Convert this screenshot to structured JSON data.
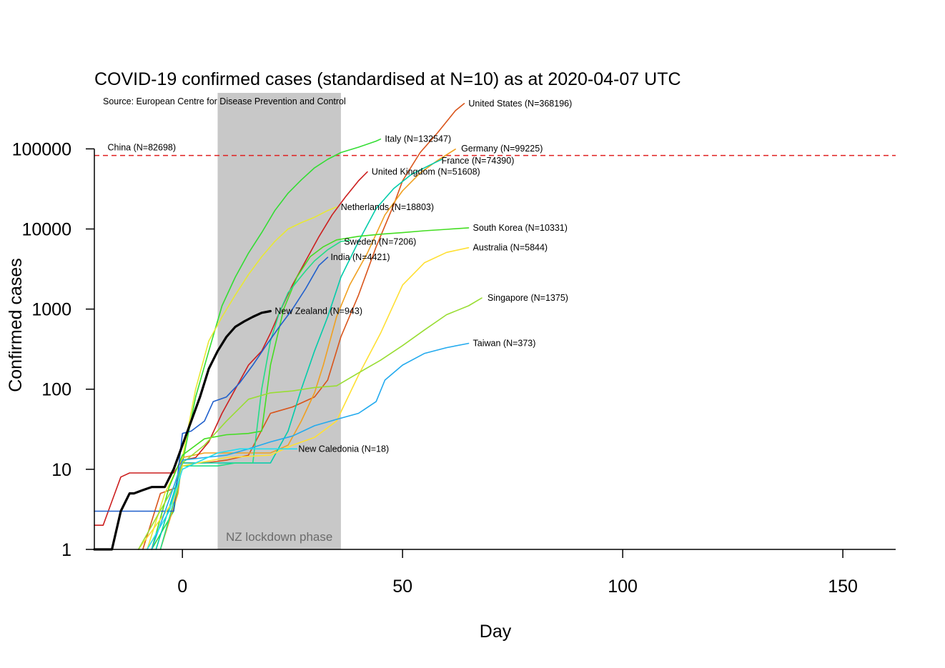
{
  "chart_data": {
    "type": "line",
    "title": "COVID-19 confirmed cases (standardised at N=10) as at 2020-04-07 UTC",
    "subtitle": "Source: European Centre for Disease Prevention and Control",
    "xlabel": "Day",
    "ylabel": "Confirmed cases",
    "x_scale": "linear",
    "y_scale": "log10",
    "xlim": [
      -20,
      162
    ],
    "ylim": [
      1,
      500000
    ],
    "x_ticks": [
      0,
      50,
      100,
      150
    ],
    "y_ticks": [
      1,
      10,
      100,
      1000,
      10000,
      100000
    ],
    "x_tick_labels": [
      "0",
      "50",
      "100",
      "150"
    ],
    "y_tick_labels": [
      "1",
      "10",
      "100",
      "1000",
      "10000",
      "100000"
    ],
    "grid": false,
    "shaded_band": {
      "x_start": 8,
      "x_end": 36,
      "label": "NZ lockdown phase",
      "color": "#c8c8c8"
    },
    "reference_line": {
      "y": 82698,
      "label": "China (N=82698)",
      "color": "#e02020",
      "style": "dashed"
    },
    "series": [
      {
        "name": "United States",
        "label": "United States (N=368196)",
        "color": "#d9541a",
        "width": 1.6,
        "x": [
          -9,
          -5,
          -1,
          0,
          5,
          10,
          15,
          20,
          25,
          30,
          33,
          36,
          40,
          44,
          48,
          50,
          54,
          58,
          62,
          64
        ],
        "y": [
          1,
          5,
          6,
          12,
          12,
          13,
          15,
          50,
          60,
          80,
          130,
          450,
          1500,
          6000,
          20000,
          40000,
          90000,
          160000,
          300000,
          368196
        ]
      },
      {
        "name": "Italy",
        "label": "Italy (N=132547)",
        "color": "#33dd33",
        "width": 1.6,
        "x": [
          -7,
          -2,
          0,
          3,
          6,
          9,
          12,
          15,
          18,
          21,
          24,
          27,
          30,
          33,
          36,
          40,
          44,
          45
        ],
        "y": [
          1,
          3,
          12,
          80,
          300,
          1100,
          2500,
          5000,
          9000,
          17000,
          28000,
          41000,
          58000,
          74000,
          90000,
          105000,
          125000,
          132547
        ]
      },
      {
        "name": "Germany",
        "label": "Germany (N=99225)",
        "color": "#f0a020",
        "width": 1.6,
        "x": [
          -5,
          -1,
          0,
          5,
          10,
          15,
          20,
          24,
          27,
          30,
          32,
          35,
          38,
          42,
          46,
          50,
          54,
          58,
          62
        ],
        "y": [
          1,
          5,
          14,
          16,
          16,
          16,
          16,
          20,
          40,
          90,
          200,
          800,
          2000,
          5000,
          15000,
          30000,
          50000,
          72000,
          99225
        ]
      },
      {
        "name": "France",
        "label": "France (N=74390)",
        "color": "#00ccaa",
        "width": 1.6,
        "x": [
          -6,
          -2,
          0,
          4,
          8,
          12,
          16,
          20,
          24,
          27,
          30,
          33,
          36,
          40,
          44,
          48,
          52,
          56,
          59
        ],
        "y": [
          1,
          5,
          12,
          12,
          12,
          12,
          12,
          12,
          30,
          100,
          300,
          800,
          2500,
          7000,
          18000,
          32000,
          48000,
          62000,
          74390
        ]
      },
      {
        "name": "United Kingdom",
        "label": "United Kingdom (N=51608)",
        "color": "#cc1f1f",
        "width": 1.6,
        "x": [
          -20,
          -18,
          -16,
          -14,
          -12,
          -8,
          -2,
          0,
          3,
          6,
          9,
          12,
          15,
          18,
          20,
          22,
          25,
          28,
          31,
          34,
          37,
          40,
          42
        ],
        "y": [
          2,
          2,
          4,
          8,
          9,
          9,
          9,
          13,
          14,
          22,
          50,
          100,
          200,
          300,
          500,
          900,
          2000,
          4000,
          8000,
          15000,
          25000,
          40000,
          51608
        ]
      },
      {
        "name": "Netherlands",
        "label": "Netherlands (N=18803)",
        "color": "#e8e833",
        "width": 1.6,
        "x": [
          -8,
          -4,
          0,
          3,
          6,
          9,
          12,
          15,
          18,
          21,
          24,
          27,
          30,
          33,
          35
        ],
        "y": [
          1,
          5,
          14,
          100,
          400,
          800,
          1500,
          2700,
          4500,
          7000,
          10000,
          12000,
          14000,
          17000,
          18803
        ]
      },
      {
        "name": "South Korea",
        "label": "South Korea (N=10331)",
        "color": "#44dd22",
        "width": 1.6,
        "x": [
          -7,
          -3,
          0,
          5,
          10,
          15,
          18,
          20,
          23,
          26,
          29,
          32,
          35,
          40,
          45,
          50,
          55,
          60,
          65
        ],
        "y": [
          1,
          6,
          15,
          24,
          27,
          28,
          30,
          200,
          1000,
          2500,
          4500,
          6000,
          7300,
          8100,
          8600,
          9000,
          9500,
          9900,
          10331
        ]
      },
      {
        "name": "Sweden",
        "label": "Sweden (N=7206)",
        "color": "#22dd88",
        "width": 1.6,
        "x": [
          -5,
          -1,
          0,
          4,
          8,
          12,
          16,
          18,
          20,
          22,
          24,
          26,
          28,
          30,
          33,
          36,
          38
        ],
        "y": [
          1,
          6,
          11,
          11,
          11,
          12,
          12,
          100,
          400,
          900,
          1600,
          2200,
          3000,
          4000,
          5500,
          7000,
          7206
        ]
      },
      {
        "name": "India",
        "label": "India (N=4421)",
        "color": "#1f5fcc",
        "width": 1.6,
        "x": [
          -20,
          -2,
          0,
          2,
          5,
          7,
          10,
          13,
          16,
          19,
          22,
          25,
          28,
          31,
          33
        ],
        "y": [
          3,
          3,
          28,
          30,
          40,
          70,
          80,
          120,
          200,
          350,
          600,
          1000,
          1800,
          3500,
          4421
        ]
      },
      {
        "name": "Australia",
        "label": "Australia (N=5844)",
        "color": "#ffe033",
        "width": 1.6,
        "x": [
          -10,
          -2,
          0,
          10,
          20,
          25,
          30,
          35,
          40,
          45,
          50,
          55,
          60,
          65
        ],
        "y": [
          1,
          4,
          11,
          14,
          15,
          20,
          25,
          40,
          150,
          500,
          2000,
          3800,
          5100,
          5844
        ]
      },
      {
        "name": "Singapore",
        "label": "Singapore (N=1375)",
        "color": "#99dd33",
        "width": 1.6,
        "x": [
          -10,
          -2,
          0,
          5,
          10,
          15,
          20,
          25,
          30,
          35,
          40,
          45,
          50,
          55,
          60,
          65,
          68
        ],
        "y": [
          1,
          6,
          12,
          20,
          40,
          75,
          90,
          95,
          105,
          110,
          160,
          230,
          350,
          550,
          850,
          1100,
          1375
        ]
      },
      {
        "name": "Taiwan",
        "label": "Taiwan (N=373)",
        "color": "#22aaee",
        "width": 1.6,
        "x": [
          -7,
          -2,
          0,
          5,
          10,
          15,
          20,
          25,
          30,
          35,
          40,
          44,
          46,
          50,
          55,
          60,
          65
        ],
        "y": [
          1,
          6,
          13,
          14,
          15,
          18,
          22,
          26,
          35,
          42,
          50,
          70,
          130,
          200,
          280,
          330,
          373
        ]
      },
      {
        "name": "New Caledonia",
        "label": "New Caledonia (N=18)",
        "color": "#22ddee",
        "width": 1.6,
        "x": [
          -8,
          -3,
          0,
          3,
          8,
          13,
          18,
          22,
          26
        ],
        "y": [
          1,
          3,
          10,
          12,
          16,
          18,
          18,
          18,
          18
        ]
      },
      {
        "name": "New Zealand",
        "label": "New Zealand (N=943)",
        "color": "#000000",
        "width": 3.2,
        "x": [
          -20,
          -16,
          -14,
          -12,
          -11,
          -9,
          -7,
          -4,
          -2,
          0,
          2,
          4,
          6,
          8,
          10,
          12,
          14,
          16,
          18,
          20
        ],
        "y": [
          1,
          1,
          3,
          5,
          5,
          5.5,
          6,
          6,
          10,
          20,
          40,
          80,
          180,
          300,
          450,
          600,
          700,
          800,
          900,
          943
        ]
      }
    ],
    "annotations": [
      {
        "series": "United States",
        "text": "United States (N=368196)"
      },
      {
        "series": "Italy",
        "text": "Italy (N=132547)"
      },
      {
        "series": "Germany",
        "text": "Germany (N=99225)"
      },
      {
        "series": "France",
        "text": "France (N=74390)"
      },
      {
        "series": "United Kingdom",
        "text": "United Kingdom (N=51608)"
      },
      {
        "series": "Netherlands",
        "text": "Netherlands (N=18803)"
      },
      {
        "series": "South Korea",
        "text": "South Korea (N=10331)"
      },
      {
        "series": "Sweden",
        "text": "Sweden (N=7206)"
      },
      {
        "series": "India",
        "text": "India (N=4421)"
      },
      {
        "series": "Australia",
        "text": "Australia (N=5844)"
      },
      {
        "series": "Singapore",
        "text": "Singapore (N=1375)"
      },
      {
        "series": "Taiwan",
        "text": "Taiwan (N=373)"
      },
      {
        "series": "New Caledonia",
        "text": "New Caledonia (N=18)"
      },
      {
        "series": "New Zealand",
        "text": "New Zealand (N=943)"
      }
    ]
  }
}
